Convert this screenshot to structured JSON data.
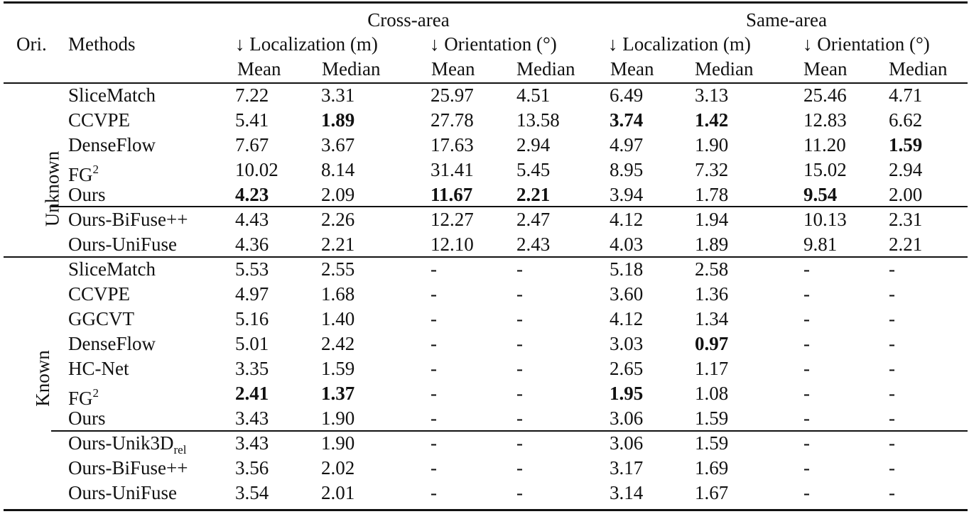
{
  "header": {
    "group_cross": "Cross-area",
    "group_same": "Same-area",
    "ori": "Ori.",
    "methods": "Methods",
    "loc_cross": "↓ Localization (m)",
    "ori_cross": "↓ Orientation (°)",
    "loc_same": "↓ Localization (m)",
    "ori_same": "↓ Orientation (°)",
    "mean": "Mean",
    "median": "Median"
  },
  "groups": {
    "unknown": "Unknown",
    "known": "Known"
  },
  "rows_unknown": [
    {
      "method": "SliceMatch",
      "sup": "",
      "sub": "",
      "v": [
        "7.22",
        "3.31",
        "25.97",
        "4.51",
        "6.49",
        "3.13",
        "25.46",
        "4.71"
      ],
      "bold": []
    },
    {
      "method": "CCVPE",
      "sup": "",
      "sub": "",
      "v": [
        "5.41",
        "1.89",
        "27.78",
        "13.58",
        "3.74",
        "1.42",
        "12.83",
        "6.62"
      ],
      "bold": [
        1,
        4,
        5
      ]
    },
    {
      "method": "DenseFlow",
      "sup": "",
      "sub": "",
      "v": [
        "7.67",
        "3.67",
        "17.63",
        "2.94",
        "4.97",
        "1.90",
        "11.20",
        "1.59"
      ],
      "bold": [
        7
      ]
    },
    {
      "method": "FG",
      "sup": "2",
      "sub": "",
      "v": [
        "10.02",
        "8.14",
        "31.41",
        "5.45",
        "8.95",
        "7.32",
        "15.02",
        "2.94"
      ],
      "bold": []
    },
    {
      "method": "Ours",
      "sup": "",
      "sub": "",
      "v": [
        "4.23",
        "2.09",
        "11.67",
        "2.21",
        "3.94",
        "1.78",
        "9.54",
        "2.00"
      ],
      "bold": [
        0,
        2,
        3,
        6
      ]
    },
    {
      "method": "Ours-BiFuse++",
      "sup": "",
      "sub": "",
      "v": [
        "4.43",
        "2.26",
        "12.27",
        "2.47",
        "4.12",
        "1.94",
        "10.13",
        "2.31"
      ],
      "bold": []
    },
    {
      "method": "Ours-UniFuse",
      "sup": "",
      "sub": "",
      "v": [
        "4.36",
        "2.21",
        "12.10",
        "2.43",
        "4.03",
        "1.89",
        "9.81",
        "2.21"
      ],
      "bold": []
    }
  ],
  "rows_known": [
    {
      "method": "SliceMatch",
      "sup": "",
      "sub": "",
      "v": [
        "5.53",
        "2.55",
        "-",
        "-",
        "5.18",
        "2.58",
        "-",
        "-"
      ],
      "bold": []
    },
    {
      "method": "CCVPE",
      "sup": "",
      "sub": "",
      "v": [
        "4.97",
        "1.68",
        "-",
        "-",
        "3.60",
        "1.36",
        "-",
        "-"
      ],
      "bold": []
    },
    {
      "method": "GGCVT",
      "sup": "",
      "sub": "",
      "v": [
        "5.16",
        "1.40",
        "-",
        "-",
        "4.12",
        "1.34",
        "-",
        "-"
      ],
      "bold": []
    },
    {
      "method": "DenseFlow",
      "sup": "",
      "sub": "",
      "v": [
        "5.01",
        "2.42",
        "-",
        "-",
        "3.03",
        "0.97",
        "-",
        "-"
      ],
      "bold": [
        5
      ]
    },
    {
      "method": "HC-Net",
      "sup": "",
      "sub": "",
      "v": [
        "3.35",
        "1.59",
        "-",
        "-",
        "2.65",
        "1.17",
        "-",
        "-"
      ],
      "bold": []
    },
    {
      "method": "FG",
      "sup": "2",
      "sub": "",
      "v": [
        "2.41",
        "1.37",
        "-",
        "-",
        "1.95",
        "1.08",
        "-",
        "-"
      ],
      "bold": [
        0,
        1,
        4
      ]
    },
    {
      "method": "Ours",
      "sup": "",
      "sub": "",
      "v": [
        "3.43",
        "1.90",
        "-",
        "-",
        "3.06",
        "1.59",
        "-",
        "-"
      ],
      "bold": []
    },
    {
      "method": "Ours-Unik3D",
      "sup": "",
      "sub": "rel",
      "v": [
        "3.43",
        "1.90",
        "-",
        "-",
        "3.06",
        "1.59",
        "-",
        "-"
      ],
      "bold": []
    },
    {
      "method": "Ours-BiFuse++",
      "sup": "",
      "sub": "",
      "v": [
        "3.56",
        "2.02",
        "-",
        "-",
        "3.17",
        "1.69",
        "-",
        "-"
      ],
      "bold": []
    },
    {
      "method": "Ours-UniFuse",
      "sup": "",
      "sub": "",
      "v": [
        "3.54",
        "2.01",
        "-",
        "-",
        "3.14",
        "1.67",
        "-",
        "-"
      ],
      "bold": []
    }
  ]
}
